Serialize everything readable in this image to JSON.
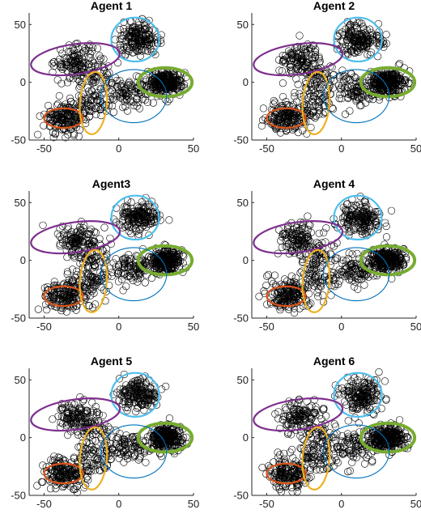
{
  "chart_data": [
    {
      "type": "scatter",
      "title": "Agent 1",
      "xlim": [
        -60,
        50
      ],
      "ylim": [
        -50,
        60
      ],
      "xticks": [
        "-50",
        "0",
        "50"
      ],
      "yticks": [
        "50",
        "0",
        "-50"
      ],
      "grid": false,
      "marker": "open-circle",
      "marker_color": "#000000",
      "clusters": [
        {
          "cx": -36,
          "cy": -31,
          "n": 160
        },
        {
          "cx": 13,
          "cy": 37,
          "n": 170
        },
        {
          "cx": -28,
          "cy": 18,
          "n": 120
        },
        {
          "cx": 31,
          "cy": 0,
          "n": 260
        },
        {
          "cx": -17,
          "cy": -19,
          "n": 60
        },
        {
          "cx": -16,
          "cy": 2,
          "n": 60
        },
        {
          "cx": 8,
          "cy": -8,
          "n": 90
        }
      ],
      "ellipses": [
        {
          "color": "#D95319",
          "cx": -37,
          "cy": -31,
          "rx": 13,
          "ry": 8.5,
          "angle": 0,
          "width": 2.2
        },
        {
          "color": "#4DBEEE",
          "cx": 11,
          "cy": 37,
          "rx": 16,
          "ry": 19,
          "angle": 0,
          "width": 2.2
        },
        {
          "color": "#7E2F8E",
          "cx": -29,
          "cy": 20,
          "rx": 30,
          "ry": 13,
          "angle": 8,
          "width": 2.2
        },
        {
          "color": "#77AC30",
          "cx": 31,
          "cy": 0,
          "rx": 18,
          "ry": 12.5,
          "angle": 0,
          "width": 4
        },
        {
          "color": "#EDB120",
          "cx": -17,
          "cy": -18,
          "rx": 9,
          "ry": 27,
          "angle": -4,
          "width": 2.2
        },
        {
          "color": "#0072BD",
          "cx": 10,
          "cy": -12,
          "rx": 22,
          "ry": 23,
          "angle": 0,
          "width": 1.1
        }
      ]
    },
    {
      "type": "scatter",
      "title": "Agent 2",
      "xlim": [
        -60,
        50
      ],
      "ylim": [
        -50,
        60
      ],
      "xticks": [
        "-50",
        "0",
        "50"
      ],
      "yticks": [
        "50",
        "0",
        "-50"
      ],
      "grid": false,
      "marker": "open-circle",
      "marker_color": "#000000",
      "clusters": [
        {
          "cx": -36,
          "cy": -31,
          "n": 160
        },
        {
          "cx": 13,
          "cy": 37,
          "n": 170
        },
        {
          "cx": -28,
          "cy": 18,
          "n": 120
        },
        {
          "cx": 31,
          "cy": 0,
          "n": 260
        },
        {
          "cx": -17,
          "cy": -19,
          "n": 60
        },
        {
          "cx": -16,
          "cy": 2,
          "n": 60
        },
        {
          "cx": 8,
          "cy": -8,
          "n": 90
        }
      ],
      "ellipses": [
        {
          "color": "#D95319",
          "cx": -37,
          "cy": -31,
          "rx": 13,
          "ry": 8.5,
          "angle": 0,
          "width": 2.2
        },
        {
          "color": "#4DBEEE",
          "cx": 11,
          "cy": 37,
          "rx": 16,
          "ry": 19,
          "angle": 0,
          "width": 2.2
        },
        {
          "color": "#7E2F8E",
          "cx": -29,
          "cy": 20,
          "rx": 30,
          "ry": 13,
          "angle": 8,
          "width": 2.2
        },
        {
          "color": "#77AC30",
          "cx": 31,
          "cy": 0,
          "rx": 18,
          "ry": 12.5,
          "angle": 0,
          "width": 4
        },
        {
          "color": "#EDB120",
          "cx": -17,
          "cy": -18,
          "rx": 9,
          "ry": 27,
          "angle": -4,
          "width": 2.2
        },
        {
          "color": "#0072BD",
          "cx": 10,
          "cy": -12,
          "rx": 22,
          "ry": 23,
          "angle": 0,
          "width": 1.1
        }
      ]
    },
    {
      "type": "scatter",
      "title": "Agent3",
      "xlim": [
        -60,
        50
      ],
      "ylim": [
        -50,
        60
      ],
      "xticks": [
        "-50",
        "0",
        "50"
      ],
      "yticks": [
        "50",
        "0",
        "-50"
      ],
      "grid": false,
      "marker": "open-circle",
      "marker_color": "#000000",
      "clusters": [
        {
          "cx": -36,
          "cy": -31,
          "n": 160
        },
        {
          "cx": 13,
          "cy": 37,
          "n": 170
        },
        {
          "cx": -28,
          "cy": 18,
          "n": 120
        },
        {
          "cx": 31,
          "cy": 0,
          "n": 260
        },
        {
          "cx": -17,
          "cy": -19,
          "n": 60
        },
        {
          "cx": -16,
          "cy": 2,
          "n": 60
        },
        {
          "cx": 8,
          "cy": -8,
          "n": 90
        }
      ],
      "ellipses": [
        {
          "color": "#D95319",
          "cx": -37,
          "cy": -31,
          "rx": 13,
          "ry": 8.5,
          "angle": 0,
          "width": 2.2
        },
        {
          "color": "#4DBEEE",
          "cx": 11,
          "cy": 37,
          "rx": 16,
          "ry": 19,
          "angle": 0,
          "width": 2.2
        },
        {
          "color": "#7E2F8E",
          "cx": -29,
          "cy": 20,
          "rx": 30,
          "ry": 13,
          "angle": 8,
          "width": 2.2
        },
        {
          "color": "#77AC30",
          "cx": 31,
          "cy": 0,
          "rx": 18,
          "ry": 12.5,
          "angle": 0,
          "width": 4
        },
        {
          "color": "#EDB120",
          "cx": -17,
          "cy": -18,
          "rx": 9,
          "ry": 27,
          "angle": -4,
          "width": 2.2
        },
        {
          "color": "#0072BD",
          "cx": 10,
          "cy": -12,
          "rx": 22,
          "ry": 23,
          "angle": 0,
          "width": 1.1
        }
      ]
    },
    {
      "type": "scatter",
      "title": "Agent 4",
      "xlim": [
        -60,
        50
      ],
      "ylim": [
        -50,
        60
      ],
      "xticks": [
        "-50",
        "0",
        "50"
      ],
      "yticks": [
        "50",
        "0",
        "-50"
      ],
      "grid": false,
      "marker": "open-circle",
      "marker_color": "#000000",
      "clusters": [
        {
          "cx": -36,
          "cy": -31,
          "n": 160
        },
        {
          "cx": 13,
          "cy": 37,
          "n": 170
        },
        {
          "cx": -28,
          "cy": 18,
          "n": 120
        },
        {
          "cx": 31,
          "cy": 0,
          "n": 260
        },
        {
          "cx": -17,
          "cy": -19,
          "n": 60
        },
        {
          "cx": -16,
          "cy": 2,
          "n": 60
        },
        {
          "cx": 8,
          "cy": -8,
          "n": 90
        }
      ],
      "ellipses": [
        {
          "color": "#D95319",
          "cx": -37,
          "cy": -31,
          "rx": 13,
          "ry": 8.5,
          "angle": 0,
          "width": 2.2
        },
        {
          "color": "#4DBEEE",
          "cx": 11,
          "cy": 37,
          "rx": 16,
          "ry": 19,
          "angle": 0,
          "width": 2.2
        },
        {
          "color": "#7E2F8E",
          "cx": -29,
          "cy": 20,
          "rx": 30,
          "ry": 13,
          "angle": 8,
          "width": 2.2
        },
        {
          "color": "#77AC30",
          "cx": 31,
          "cy": 0,
          "rx": 18,
          "ry": 12.5,
          "angle": 0,
          "width": 4
        },
        {
          "color": "#EDB120",
          "cx": -17,
          "cy": -18,
          "rx": 9,
          "ry": 27,
          "angle": -4,
          "width": 2.2
        },
        {
          "color": "#0072BD",
          "cx": 10,
          "cy": -12,
          "rx": 22,
          "ry": 23,
          "angle": 0,
          "width": 1.1
        }
      ]
    },
    {
      "type": "scatter",
      "title": "Agent 5",
      "xlim": [
        -60,
        50
      ],
      "ylim": [
        -50,
        60
      ],
      "xticks": [
        "-50",
        "0",
        "50"
      ],
      "yticks": [
        "50",
        "0",
        "-50"
      ],
      "grid": false,
      "marker": "open-circle",
      "marker_color": "#000000",
      "clusters": [
        {
          "cx": -36,
          "cy": -31,
          "n": 160
        },
        {
          "cx": 13,
          "cy": 37,
          "n": 170
        },
        {
          "cx": -28,
          "cy": 18,
          "n": 120
        },
        {
          "cx": 31,
          "cy": 0,
          "n": 260
        },
        {
          "cx": -17,
          "cy": -19,
          "n": 60
        },
        {
          "cx": -16,
          "cy": 2,
          "n": 60
        },
        {
          "cx": 8,
          "cy": -8,
          "n": 90
        }
      ],
      "ellipses": [
        {
          "color": "#D95319",
          "cx": -37,
          "cy": -31,
          "rx": 13,
          "ry": 8.5,
          "angle": 0,
          "width": 2.2
        },
        {
          "color": "#4DBEEE",
          "cx": 11,
          "cy": 37,
          "rx": 16,
          "ry": 19,
          "angle": 0,
          "width": 2.2
        },
        {
          "color": "#7E2F8E",
          "cx": -29,
          "cy": 20,
          "rx": 30,
          "ry": 13,
          "angle": 8,
          "width": 2.2
        },
        {
          "color": "#77AC30",
          "cx": 31,
          "cy": 0,
          "rx": 18,
          "ry": 12.5,
          "angle": 0,
          "width": 4
        },
        {
          "color": "#EDB120",
          "cx": -17,
          "cy": -18,
          "rx": 9,
          "ry": 27,
          "angle": -4,
          "width": 2.2
        },
        {
          "color": "#0072BD",
          "cx": 10,
          "cy": -12,
          "rx": 22,
          "ry": 23,
          "angle": 0,
          "width": 1.1
        }
      ]
    },
    {
      "type": "scatter",
      "title": "Agent 6",
      "xlim": [
        -60,
        50
      ],
      "ylim": [
        -50,
        60
      ],
      "xticks": [
        "-50",
        "0",
        "50"
      ],
      "yticks": [
        "50",
        "0",
        "-50"
      ],
      "grid": false,
      "marker": "open-circle",
      "marker_color": "#000000",
      "clusters": [
        {
          "cx": -36,
          "cy": -31,
          "n": 160
        },
        {
          "cx": 13,
          "cy": 37,
          "n": 170
        },
        {
          "cx": -28,
          "cy": 18,
          "n": 120
        },
        {
          "cx": 31,
          "cy": 0,
          "n": 260
        },
        {
          "cx": -17,
          "cy": -19,
          "n": 60
        },
        {
          "cx": -16,
          "cy": 2,
          "n": 60
        },
        {
          "cx": 8,
          "cy": -8,
          "n": 90
        }
      ],
      "ellipses": [
        {
          "color": "#D95319",
          "cx": -37,
          "cy": -31,
          "rx": 13,
          "ry": 8.5,
          "angle": 0,
          "width": 2.2
        },
        {
          "color": "#4DBEEE",
          "cx": 11,
          "cy": 37,
          "rx": 16,
          "ry": 19,
          "angle": 0,
          "width": 2.2
        },
        {
          "color": "#7E2F8E",
          "cx": -29,
          "cy": 20,
          "rx": 30,
          "ry": 13,
          "angle": 8,
          "width": 2.2
        },
        {
          "color": "#77AC30",
          "cx": 31,
          "cy": 0,
          "rx": 18,
          "ry": 12.5,
          "angle": 0,
          "width": 4
        },
        {
          "color": "#EDB120",
          "cx": -17,
          "cy": -18,
          "rx": 9,
          "ry": 27,
          "angle": -4,
          "width": 2.2
        },
        {
          "color": "#0072BD",
          "cx": 10,
          "cy": -12,
          "rx": 22,
          "ry": 23,
          "angle": 0,
          "width": 1.1
        }
      ]
    }
  ]
}
